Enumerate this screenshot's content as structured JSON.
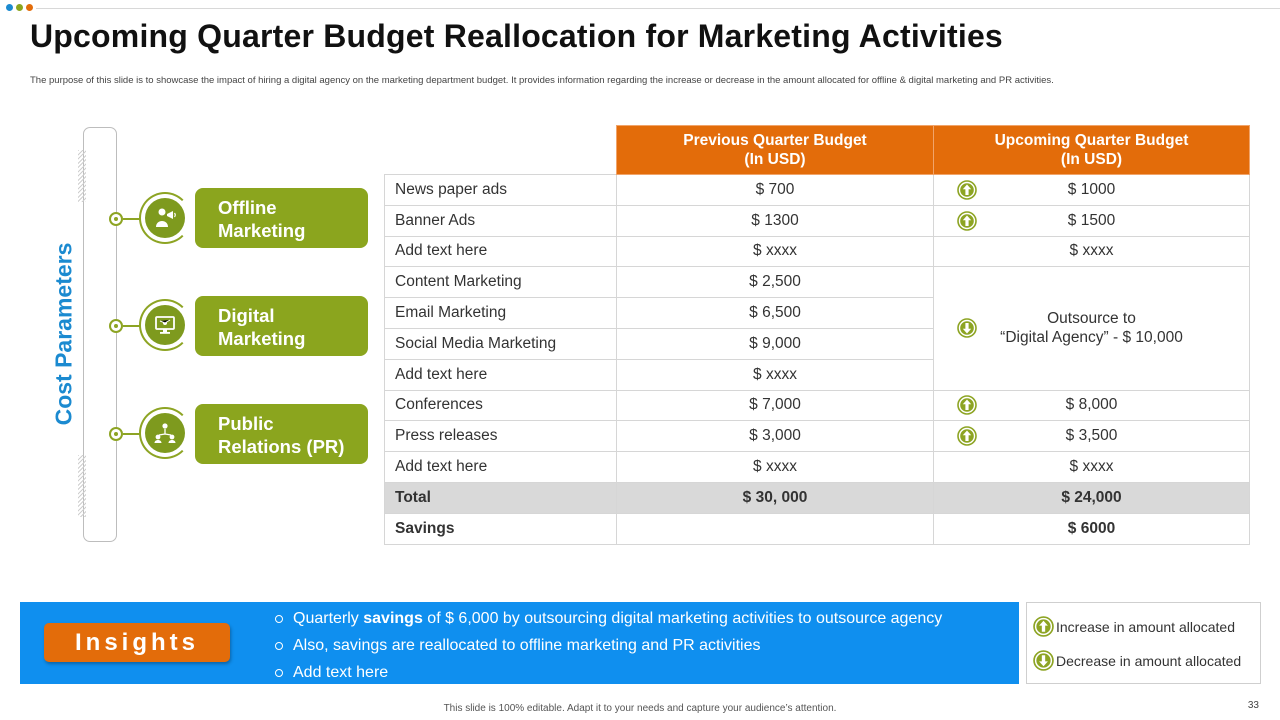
{
  "title": "Upcoming Quarter Budget Reallocation for Marketing Activities",
  "subtitle": "The purpose of this slide is to showcase the impact of hiring a digital agency on the marketing department budget. It provides information regarding the increase or decrease in the amount allocated for offline & digital marketing and PR activities.",
  "colors": {
    "orange": "#e36c0a",
    "green": "#8ba51e",
    "blue": "#0f8fef",
    "label_blue": "#1b8ad0"
  },
  "left_panel": {
    "label": "Cost Parameters",
    "categories": [
      {
        "line1": "Offline",
        "line2": "Marketing",
        "icon": "megaphone-person-icon"
      },
      {
        "line1": "Digital",
        "line2": "Marketing",
        "icon": "monitor-network-icon"
      },
      {
        "line1": "Public",
        "line2": "Relations (PR)",
        "icon": "people-network-icon"
      }
    ]
  },
  "table": {
    "headers": {
      "prev_line1": "Previous Quarter Budget",
      "prev_line2": "(In USD)",
      "up_line1": "Upcoming Quarter Budget",
      "up_line2": "(In USD)"
    },
    "rows": [
      {
        "param": "News paper ads",
        "prev": "$ 700",
        "up": "$ 1000",
        "trend": "up"
      },
      {
        "param": "Banner Ads",
        "prev": "$ 1300",
        "up": "$ 1500",
        "trend": "up"
      },
      {
        "param": "Add text here",
        "prev": "$ xxxx",
        "up": "$ xxxx",
        "trend": ""
      },
      {
        "param": "Content Marketing",
        "prev": "$ 2,500"
      },
      {
        "param": "Email Marketing",
        "prev": "$ 6,500"
      },
      {
        "param": "Social Media Marketing",
        "prev": "$ 9,000"
      },
      {
        "param": "Add text here",
        "prev": "$ xxxx"
      },
      {
        "param": "Conferences",
        "prev": "$ 7,000",
        "up": "$ 8,000",
        "trend": "up"
      },
      {
        "param": "Press releases",
        "prev": "$ 3,000",
        "up": "$ 3,500",
        "trend": "up"
      },
      {
        "param": "Add text here",
        "prev": "$ xxxx",
        "up": "$ xxxx",
        "trend": ""
      }
    ],
    "outsource_line1": "Outsource to",
    "outsource_line2": "“Digital Agency” - $ 10,000",
    "outsource_trend": "down",
    "total_label": "Total",
    "total_prev": "$ 30, 000",
    "total_up": "$ 24,000",
    "savings_label": "Savings",
    "savings_value": "$ 6000"
  },
  "insights": {
    "label": "Insights",
    "item1_pre": "Quarterly ",
    "item1_bold": "savings",
    "item1_post": " of $ 6,000 by outsourcing digital marketing activities to outsource agency",
    "item2": "Also, savings are reallocated to offline marketing and PR activities",
    "item3": "Add text here"
  },
  "legend": {
    "increase": "Increase in amount allocated",
    "decrease": "Decrease in amount allocated"
  },
  "footer": "This slide is 100% editable. Adapt it to your needs and capture your audience’s attention.",
  "page_number": "33"
}
